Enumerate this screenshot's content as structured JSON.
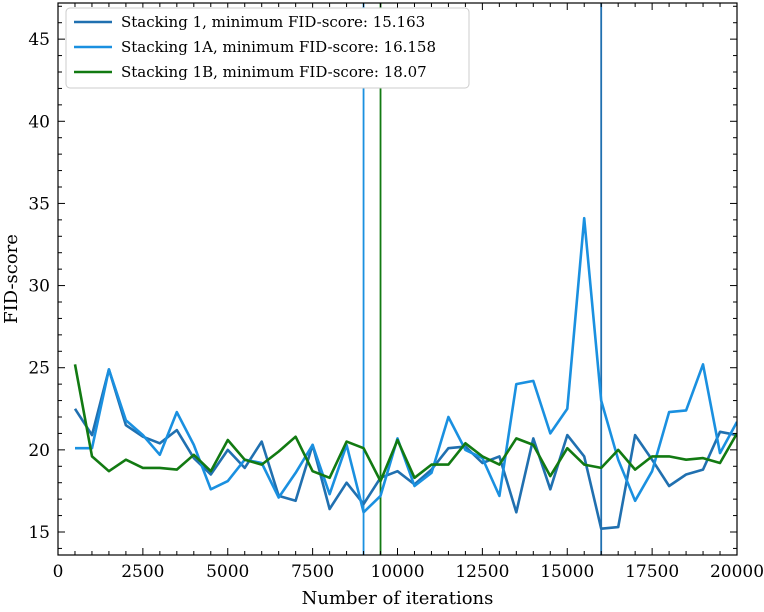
{
  "chart_data": {
    "type": "line",
    "xlabel": "Number of iterations",
    "ylabel": "FID-score",
    "xlim": [
      0,
      20000
    ],
    "ylim": [
      13.6,
      47.2
    ],
    "xticks": [
      0,
      2500,
      5000,
      7500,
      10000,
      12500,
      15000,
      17500,
      20000
    ],
    "yticks": [
      15,
      20,
      25,
      30,
      35,
      40,
      45
    ],
    "grid": false,
    "legend_position": "top-left",
    "series": [
      {
        "name": "Stacking 1, minimum FID-score: 15.163",
        "color": "#2070b0",
        "x": [
          500,
          1000,
          1500,
          2000,
          2500,
          3000,
          3500,
          4000,
          4500,
          5000,
          5500,
          6000,
          6500,
          7000,
          7500,
          8000,
          8500,
          9000,
          9500,
          10000,
          10500,
          11000,
          11500,
          12000,
          12500,
          13000,
          13500,
          14000,
          14500,
          15000,
          15500,
          16000,
          16500,
          17000,
          17500,
          18000,
          18500,
          19000,
          19500,
          20000
        ],
        "y": [
          22.5,
          20.9,
          24.9,
          21.5,
          20.8,
          20.4,
          21.2,
          19.5,
          18.5,
          20.0,
          18.9,
          20.5,
          17.2,
          16.9,
          20.3,
          16.4,
          18.0,
          16.7,
          18.3,
          18.7,
          17.9,
          18.8,
          20.1,
          20.2,
          19.2,
          19.6,
          16.2,
          20.7,
          17.6,
          20.9,
          19.6,
          15.2,
          15.3,
          20.9,
          19.4,
          17.8,
          18.5,
          18.8,
          21.1,
          20.9
        ],
        "vline_x": 16000
      },
      {
        "name": "Stacking 1A, minimum FID-score: 16.158",
        "color": "#1a90e0",
        "x": [
          500,
          1000,
          1500,
          2000,
          2500,
          3000,
          3500,
          4000,
          4500,
          5000,
          5500,
          6000,
          6500,
          7000,
          7500,
          8000,
          8500,
          9000,
          9500,
          10000,
          10500,
          11000,
          11500,
          12000,
          12500,
          13000,
          13500,
          14000,
          14500,
          15000,
          15500,
          16000,
          16500,
          17000,
          17500,
          18000,
          18500,
          19000,
          19500,
          20000
        ],
        "y": [
          20.1,
          20.1,
          24.9,
          21.8,
          20.9,
          19.7,
          22.3,
          20.3,
          17.6,
          18.1,
          19.4,
          19.2,
          17.1,
          18.6,
          20.3,
          17.3,
          20.3,
          16.2,
          17.2,
          20.7,
          17.8,
          18.6,
          22.0,
          20.0,
          19.5,
          17.2,
          24.0,
          24.2,
          21.0,
          22.5,
          34.1,
          23.0,
          19.4,
          16.9,
          18.7,
          22.3,
          22.4,
          25.2,
          19.8,
          21.7
        ],
        "vline_x": 9000
      },
      {
        "name": "Stacking 1B, minimum FID-score: 18.07",
        "color": "#127a12",
        "x": [
          500,
          1000,
          1500,
          2000,
          2500,
          3000,
          3500,
          4000,
          4500,
          5000,
          5500,
          6000,
          6500,
          7000,
          7500,
          8000,
          8500,
          9000,
          9500,
          10000,
          10500,
          11000,
          11500,
          12000,
          12500,
          13000,
          13500,
          14000,
          14500,
          15000,
          15500,
          16000,
          16500,
          17000,
          17500,
          18000,
          18500,
          19000,
          19500,
          20000
        ],
        "y": [
          25.2,
          19.6,
          18.7,
          19.4,
          18.9,
          18.9,
          18.8,
          19.7,
          18.7,
          20.6,
          19.4,
          19.1,
          19.9,
          20.8,
          18.7,
          18.3,
          20.5,
          20.1,
          18.1,
          20.6,
          18.3,
          19.1,
          19.1,
          20.4,
          19.6,
          19.1,
          20.7,
          20.3,
          18.4,
          20.1,
          19.1,
          18.9,
          20.0,
          18.8,
          19.6,
          19.6,
          19.4,
          19.5,
          19.2,
          21.0
        ],
        "vline_x": 9500
      }
    ]
  }
}
